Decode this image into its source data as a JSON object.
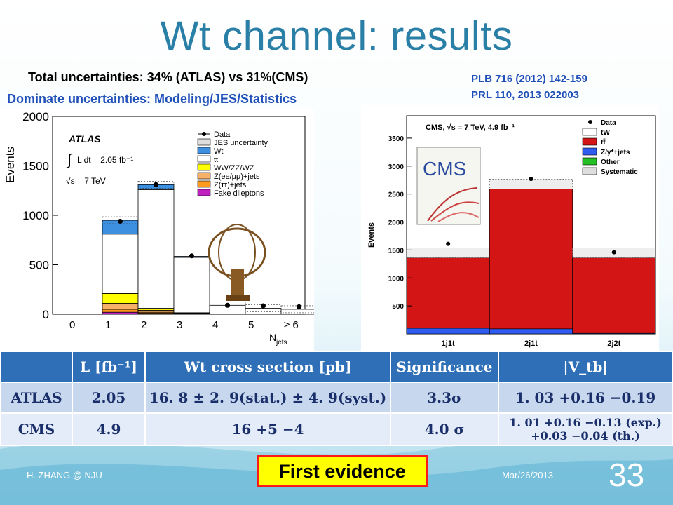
{
  "slide": {
    "title": "Wt channel: results",
    "line1": "Total uncertainties: 34% (ATLAS) vs 31%(CMS)",
    "line2": "Dominate uncertainties: Modeling/JES/Statistics",
    "refs": [
      "PLB 716 (2012) 142-159",
      "PRL 110, 2013 022003"
    ],
    "badge": "First evidence",
    "footer_left": "H. ZHANG @ NJU",
    "footer_date": "Mar/26/2013",
    "page_number": "33"
  },
  "atlas_plot": {
    "label": "ATLAS",
    "lumi": "L dt = 2.05 fb⁻¹",
    "energy": "√s = 7 TeV",
    "ylabel": "Events",
    "xlabel": "N",
    "xlabel_sub": "jets",
    "legend": [
      "Data",
      "JES uncertainty",
      "Wt",
      "tt̄",
      "WW/ZZ/WZ",
      "Z(ee/μμ)+jets",
      "Z(ττ)+jets",
      "Fake dileptons"
    ],
    "colors": {
      "wt": "#3d8fe0",
      "diboson": "#ffff00",
      "zll": "#f5b06a",
      "ztt": "#ff9a1f",
      "fake": "#c020c0"
    }
  },
  "cms_plot": {
    "label": "CMS, √s = 7 TeV, 4.9 fb⁻¹",
    "logo": "CMS",
    "ylabel": "Events",
    "legend": [
      "Data",
      "tW",
      "tt̄",
      "Z/γ*+jets",
      "Other",
      "Systematic"
    ],
    "colors": {
      "ttbar": "#d31515",
      "zjets": "#2e5bf0",
      "other": "#22c022"
    }
  },
  "chart_data": [
    {
      "type": "bar",
      "title": "ATLAS",
      "xlabel": "N jets",
      "ylabel": "Events",
      "categories": [
        "0",
        "1",
        "2",
        "3",
        "4",
        "5",
        "≥ 6"
      ],
      "x_ticks": [
        "0",
        "1",
        "2",
        "3",
        "4",
        "5",
        "≥ 6"
      ],
      "y_ticks": [
        "0",
        "500",
        "1000",
        "1500",
        "2000"
      ],
      "ylim": [
        0,
        2000
      ],
      "series": [
        {
          "name": "Data",
          "values": [
            0,
            940,
            1310,
            590,
            90,
            85,
            75
          ]
        },
        {
          "name": "Wt",
          "values": [
            0,
            140,
            50,
            10,
            0,
            0,
            0
          ]
        },
        {
          "name": "tt̄",
          "values": [
            0,
            600,
            1200,
            560,
            90,
            60,
            50
          ]
        },
        {
          "name": "WW/ZZ/WZ",
          "values": [
            0,
            100,
            20,
            5,
            0,
            0,
            0
          ]
        },
        {
          "name": "Z(ee/μμ)+jets",
          "values": [
            0,
            60,
            20,
            5,
            0,
            0,
            0
          ]
        },
        {
          "name": "Z(ττ)+jets",
          "values": [
            0,
            30,
            10,
            2,
            0,
            0,
            0
          ]
        },
        {
          "name": "Fake dileptons",
          "values": [
            0,
            20,
            10,
            3,
            0,
            0,
            0
          ]
        }
      ],
      "legend_position": "top-right",
      "grid": false
    },
    {
      "type": "bar",
      "title": "CMS, √s = 7 TeV, 4.9 fb⁻¹",
      "ylabel": "Events",
      "categories": [
        "1j1t",
        "2j1t",
        "2j2t"
      ],
      "y_ticks": [
        "500",
        "1000",
        "1500",
        "2000",
        "2500",
        "3000",
        "3500"
      ],
      "ylim": [
        0,
        3900
      ],
      "series": [
        {
          "name": "Data",
          "values": [
            1610,
            2770,
            1460
          ]
        },
        {
          "name": "tt̄",
          "values": [
            1260,
            2500,
            1350
          ]
        },
        {
          "name": "Z/γ*+jets",
          "values": [
            100,
            90,
            10
          ]
        },
        {
          "name": "tW",
          "values": [
            0,
            0,
            0
          ]
        }
      ],
      "legend_position": "top-right",
      "grid": false
    }
  ],
  "table": {
    "headers": [
      "",
      "L [fb⁻¹]",
      "Wt cross section [pb]",
      "Significance",
      "|V_tb|"
    ],
    "rows": [
      [
        "ATLAS",
        "2.05",
        "16. 8 ± 2. 9(stat.) ± 4. 9(syst.)",
        "3.3σ",
        "1. 03 +0.16 −0.19"
      ],
      [
        "CMS",
        "4.9",
        "16 +5 −4",
        "4.0 σ",
        "1. 01 +0.16 −0.13 (exp.) +0.03 −0.04 (th.)"
      ]
    ]
  }
}
